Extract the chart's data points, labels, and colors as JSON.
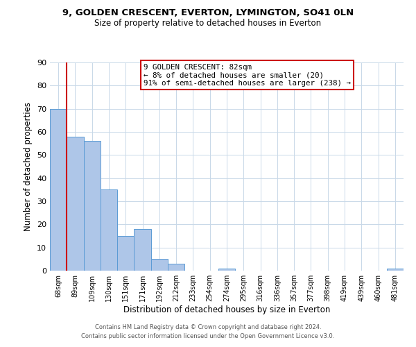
{
  "title1": "9, GOLDEN CRESCENT, EVERTON, LYMINGTON, SO41 0LN",
  "title2": "Size of property relative to detached houses in Everton",
  "xlabel": "Distribution of detached houses by size in Everton",
  "ylabel": "Number of detached properties",
  "bar_labels": [
    "68sqm",
    "89sqm",
    "109sqm",
    "130sqm",
    "151sqm",
    "171sqm",
    "192sqm",
    "212sqm",
    "233sqm",
    "254sqm",
    "274sqm",
    "295sqm",
    "316sqm",
    "336sqm",
    "357sqm",
    "377sqm",
    "398sqm",
    "419sqm",
    "439sqm",
    "460sqm",
    "481sqm"
  ],
  "bar_values": [
    70,
    58,
    56,
    35,
    15,
    18,
    5,
    3,
    0,
    0,
    1,
    0,
    0,
    0,
    0,
    0,
    0,
    0,
    0,
    0,
    1
  ],
  "bar_color": "#aec6e8",
  "bar_edge_color": "#5b9bd5",
  "ylim": [
    0,
    90
  ],
  "yticks": [
    0,
    10,
    20,
    30,
    40,
    50,
    60,
    70,
    80,
    90
  ],
  "vline_x": 0.5,
  "vline_color": "#cc0000",
  "annotation_box_text": "9 GOLDEN CRESCENT: 82sqm\n← 8% of detached houses are smaller (20)\n91% of semi-detached houses are larger (238) →",
  "annotation_box_color": "#ffffff",
  "annotation_box_edge": "#cc0000",
  "footer1": "Contains HM Land Registry data © Crown copyright and database right 2024.",
  "footer2": "Contains public sector information licensed under the Open Government Licence v3.0.",
  "background_color": "#ffffff",
  "grid_color": "#c8d8e8"
}
